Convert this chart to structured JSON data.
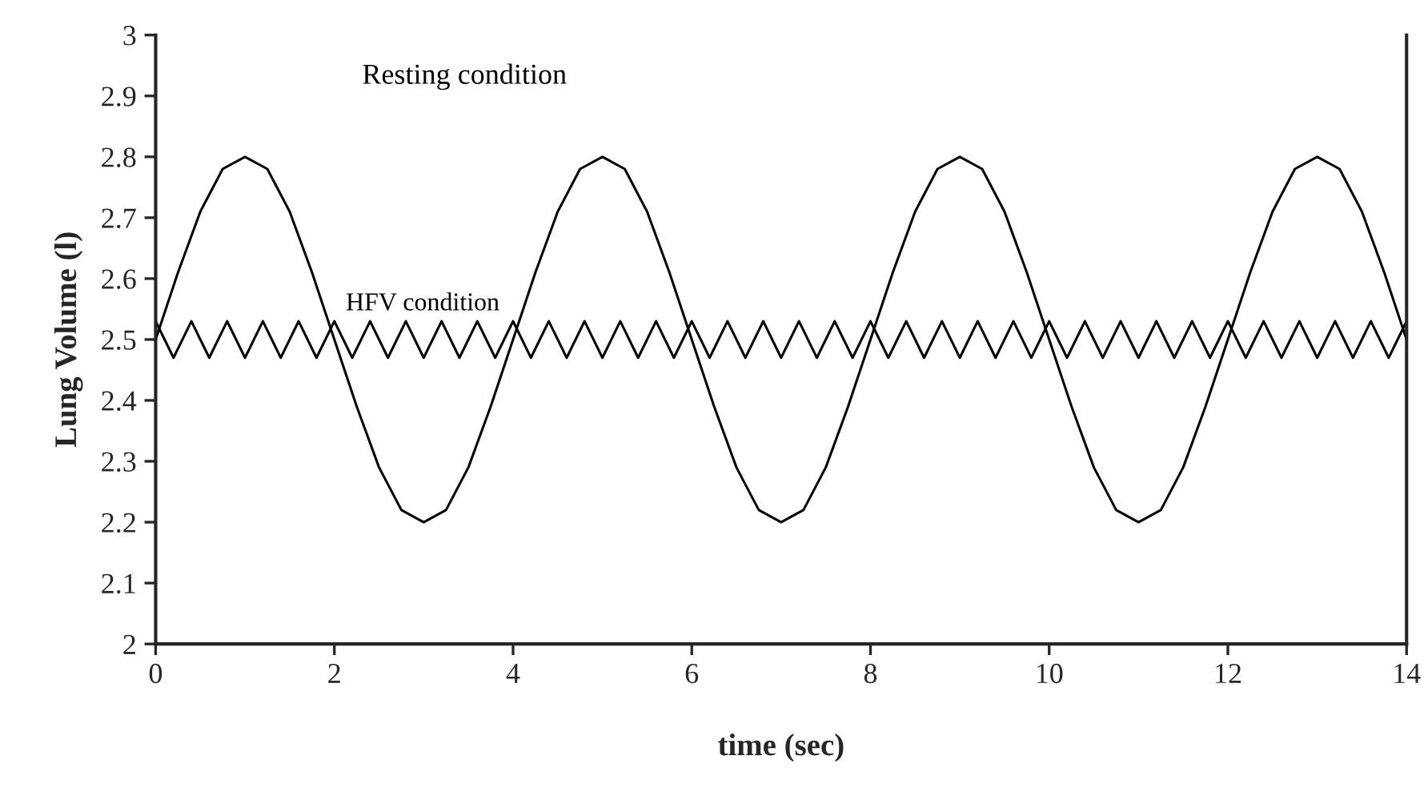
{
  "chart_data": {
    "type": "line",
    "xlabel": "time (sec)",
    "ylabel": "Lung Volume (l)",
    "xlim": [
      0,
      14
    ],
    "xticks": [
      0,
      2,
      4,
      6,
      8,
      10,
      12,
      14
    ],
    "ylim": [
      2,
      3
    ],
    "yticks": [
      2,
      2.1,
      2.2,
      2.3,
      2.4,
      2.5,
      2.6,
      2.7,
      2.8,
      2.9,
      3
    ],
    "grid": false,
    "legend": false,
    "marker": "none",
    "line_style": "solid",
    "series": [
      {
        "name": "Resting condition",
        "color": "#000000",
        "x": [
          0,
          0.25,
          0.5,
          0.75,
          1,
          1.25,
          1.5,
          1.75,
          2,
          2.25,
          2.5,
          2.75,
          3,
          3.25,
          3.5,
          3.75,
          4,
          4.25,
          4.5,
          4.75,
          5,
          5.25,
          5.5,
          5.75,
          6,
          6.25,
          6.5,
          6.75,
          7,
          7.25,
          7.5,
          7.75,
          8,
          8.25,
          8.5,
          8.75,
          9,
          9.25,
          9.5,
          9.75,
          10,
          10.25,
          10.5,
          10.75,
          11,
          11.25,
          11.5,
          11.75,
          12,
          12.25,
          12.5,
          12.75,
          13,
          13.25,
          13.5,
          13.75,
          14
        ],
        "values": [
          2.5,
          2.61,
          2.71,
          2.78,
          2.8,
          2.78,
          2.71,
          2.61,
          2.5,
          2.39,
          2.29,
          2.22,
          2.2,
          2.22,
          2.29,
          2.39,
          2.5,
          2.61,
          2.71,
          2.78,
          2.8,
          2.78,
          2.71,
          2.61,
          2.5,
          2.39,
          2.29,
          2.22,
          2.2,
          2.22,
          2.29,
          2.39,
          2.5,
          2.61,
          2.71,
          2.78,
          2.8,
          2.78,
          2.71,
          2.61,
          2.5,
          2.39,
          2.29,
          2.22,
          2.2,
          2.22,
          2.29,
          2.39,
          2.5,
          2.61,
          2.71,
          2.78,
          2.8,
          2.78,
          2.71,
          2.61,
          2.5
        ]
      },
      {
        "name": "HFV condition",
        "color": "#000000",
        "x": [
          0,
          0.2,
          0.4,
          0.6,
          0.8,
          1,
          1.2,
          1.4,
          1.6,
          1.8,
          2,
          2.2,
          2.4,
          2.6,
          2.8,
          3,
          3.2,
          3.4,
          3.6,
          3.8,
          4,
          4.2,
          4.4,
          4.6,
          4.8,
          5,
          5.2,
          5.4,
          5.6,
          5.8,
          6,
          6.2,
          6.4,
          6.6,
          6.8,
          7,
          7.2,
          7.4,
          7.6,
          7.8,
          8,
          8.2,
          8.4,
          8.6,
          8.8,
          9,
          9.2,
          9.4,
          9.6,
          9.8,
          10,
          10.2,
          10.4,
          10.6,
          10.8,
          11,
          11.2,
          11.4,
          11.6,
          11.8,
          12,
          12.2,
          12.4,
          12.6,
          12.8,
          13,
          13.2,
          13.4,
          13.6,
          13.8,
          14
        ],
        "values": [
          2.53,
          2.47,
          2.53,
          2.47,
          2.53,
          2.47,
          2.53,
          2.47,
          2.53,
          2.47,
          2.53,
          2.47,
          2.53,
          2.47,
          2.53,
          2.47,
          2.53,
          2.47,
          2.53,
          2.47,
          2.53,
          2.47,
          2.53,
          2.47,
          2.53,
          2.47,
          2.53,
          2.47,
          2.53,
          2.47,
          2.53,
          2.47,
          2.53,
          2.47,
          2.53,
          2.47,
          2.53,
          2.47,
          2.53,
          2.47,
          2.53,
          2.47,
          2.53,
          2.47,
          2.53,
          2.47,
          2.53,
          2.47,
          2.53,
          2.47,
          2.53,
          2.47,
          2.53,
          2.47,
          2.53,
          2.47,
          2.53,
          2.47,
          2.53,
          2.47,
          2.53,
          2.47,
          2.53,
          2.47,
          2.53,
          2.47,
          2.53,
          2.47,
          2.53,
          2.47,
          2.53
        ]
      }
    ]
  }
}
